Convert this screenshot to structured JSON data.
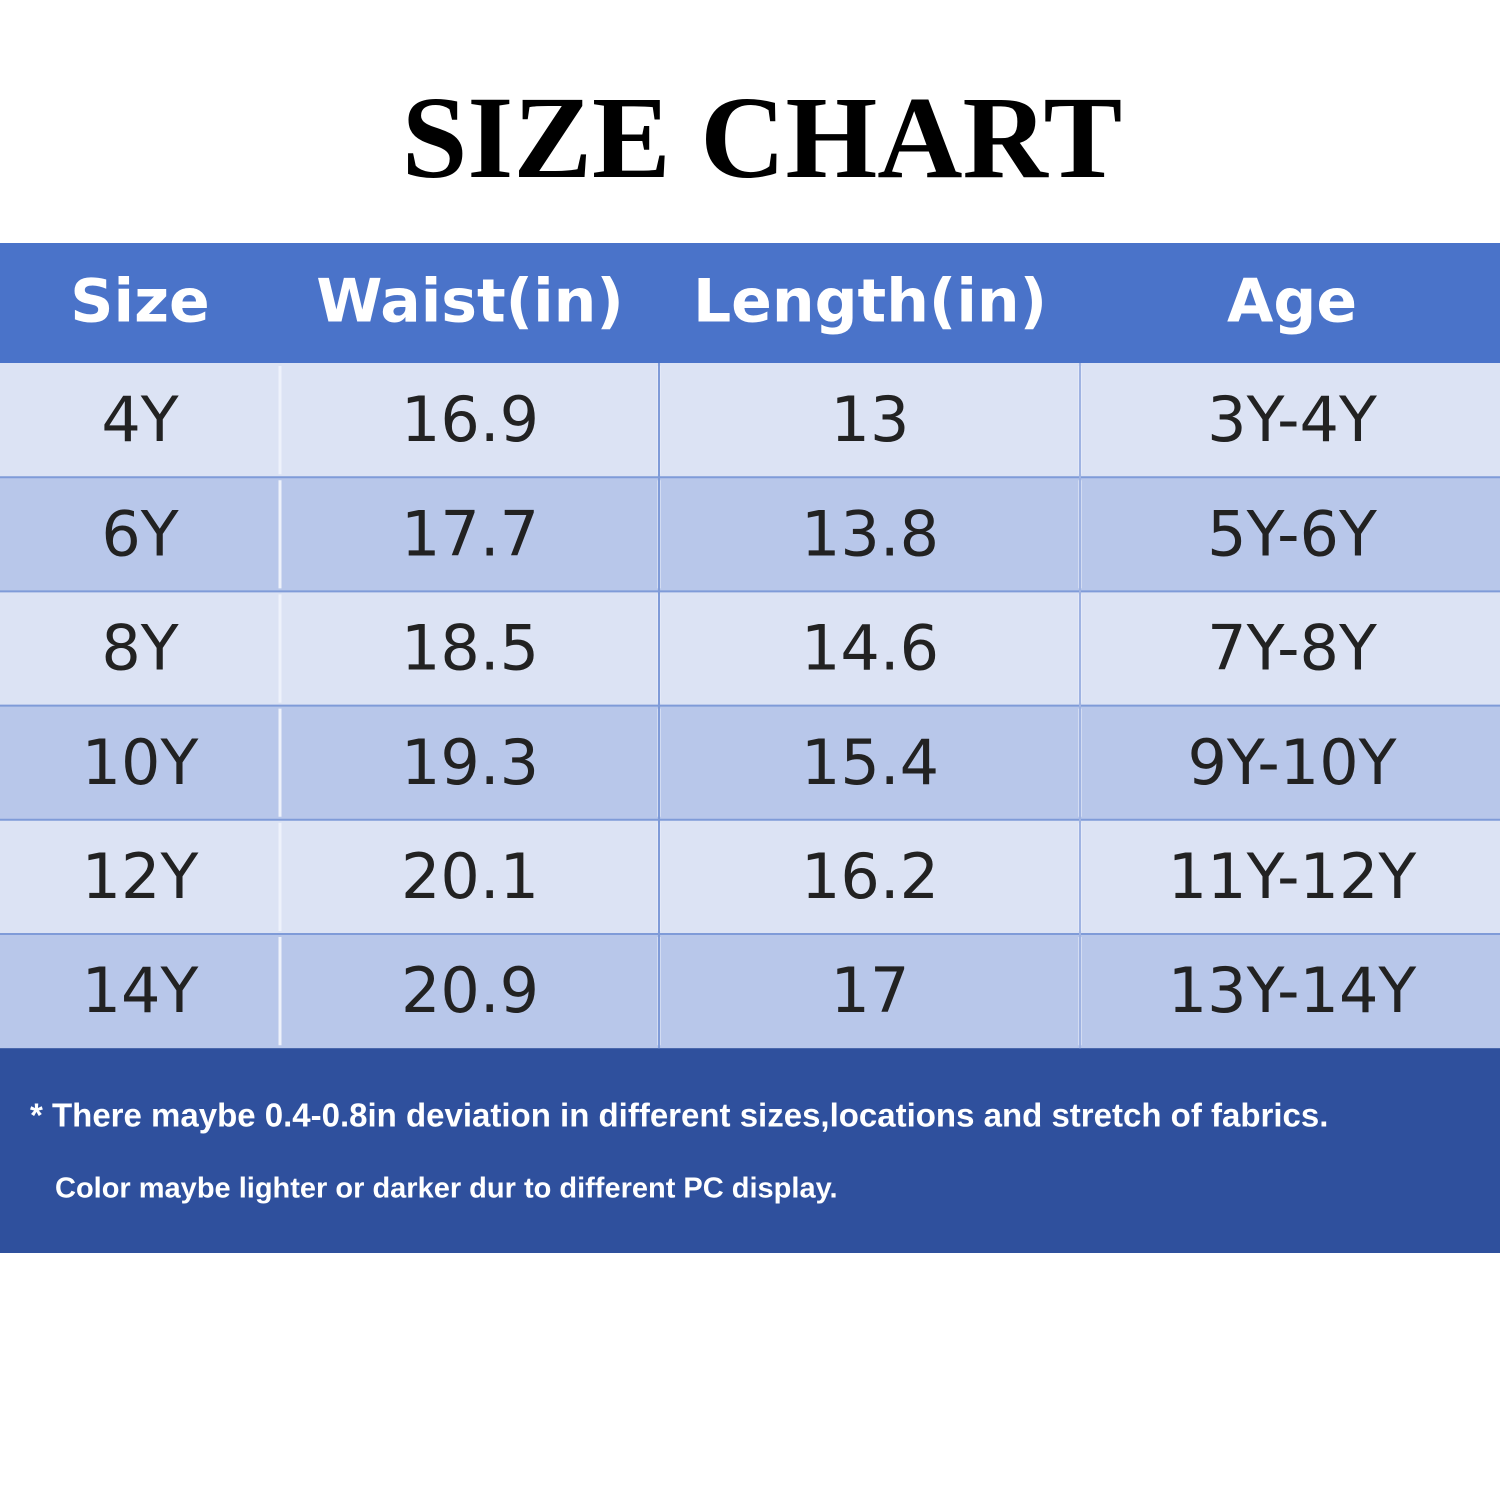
{
  "header": {
    "title": "SIZE CHART"
  },
  "table": {
    "headers": [
      "Size",
      "Waist(in)",
      "Length(in)",
      "Age"
    ],
    "rows": [
      [
        "4Y",
        "16.9",
        "13",
        "3Y-4Y"
      ],
      [
        "6Y",
        "17.7",
        "13.8",
        "5Y-6Y"
      ],
      [
        "8Y",
        "18.5",
        "14.6",
        "7Y-8Y"
      ],
      [
        "10Y",
        "19.3",
        "15.4",
        "9Y-10Y"
      ],
      [
        "12Y",
        "20.1",
        "16.2",
        "11Y-12Y"
      ],
      [
        "14Y",
        "20.9",
        "17",
        "13Y-14Y"
      ]
    ]
  },
  "notes": [
    "* There maybe 0.4-0.8in deviation in different sizes,locations and stretch of fabrics.",
    "Color maybe lighter or darker dur to different PC display."
  ]
}
